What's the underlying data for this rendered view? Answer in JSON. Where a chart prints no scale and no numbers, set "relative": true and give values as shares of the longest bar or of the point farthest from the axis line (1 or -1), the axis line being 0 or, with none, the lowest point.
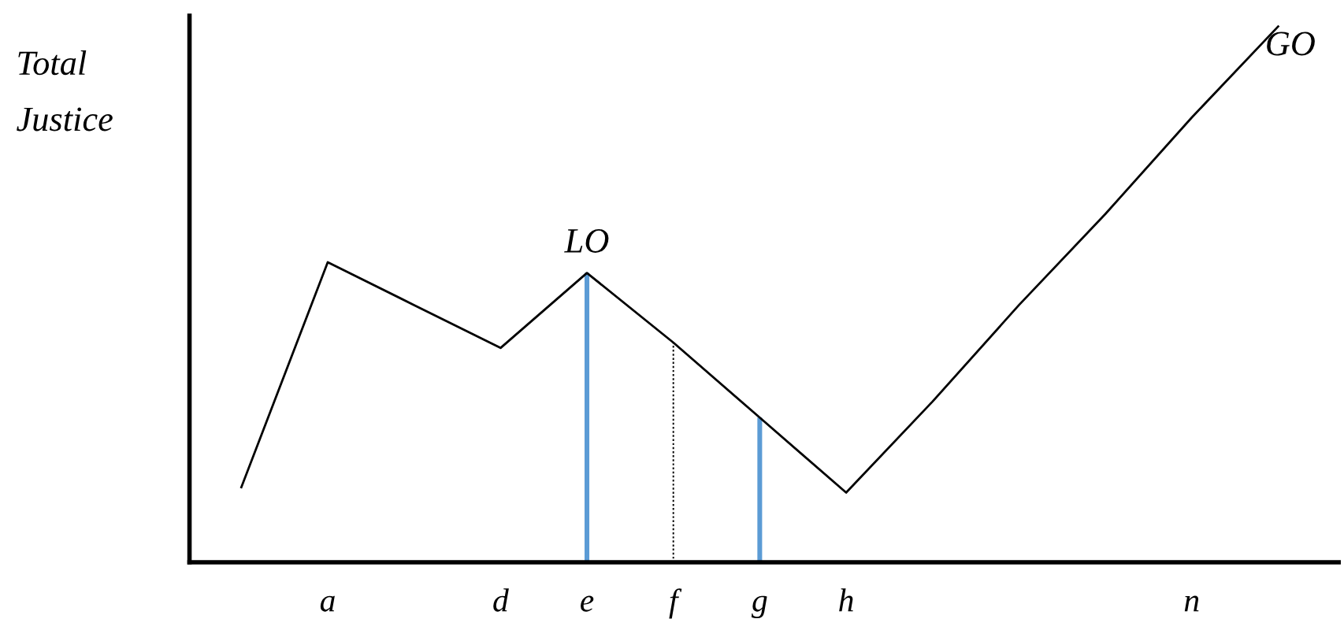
{
  "chart_data": {
    "type": "line",
    "relative": true,
    "ylabel": "Total\nJustice",
    "categories": [
      null,
      "a",
      null,
      "d",
      "e",
      "f",
      "g",
      "h",
      null,
      null,
      null,
      "n",
      null
    ],
    "series": [
      {
        "color": "#000000",
        "values": [
          0.14,
          0.56,
          0.48,
          0.4,
          0.54,
          0.41,
          0.27,
          0.13,
          0.3,
          0.48,
          0.65,
          0.83,
          1.0
        ]
      },
      {
        "type": "bar",
        "color": "#5b9bd5",
        "values": [
          null,
          null,
          null,
          null,
          0.54,
          null,
          0.27,
          null,
          null,
          null,
          null,
          null,
          null
        ]
      },
      {
        "type": "bar",
        "color": "#000000",
        "line_style": "dotted",
        "values": [
          null,
          null,
          null,
          null,
          null,
          0.41,
          null,
          null,
          null,
          null,
          null,
          null,
          null
        ]
      }
    ],
    "annotations": [
      {
        "text": "LO",
        "x": "e",
        "y": 0.54
      },
      "GO"
    ]
  }
}
